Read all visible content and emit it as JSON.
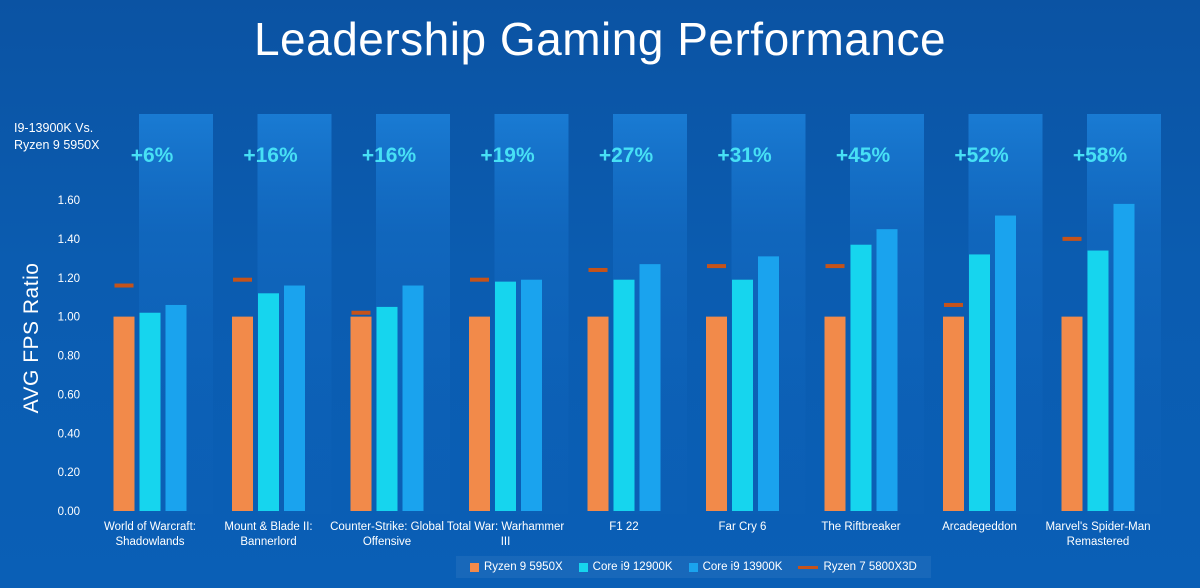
{
  "title": "Leadership Gaming Performance",
  "compare_note": "I9-13900K Vs. Ryzen 9 5950X",
  "chart_data": {
    "type": "bar",
    "title": "Leadership Gaming Performance",
    "ylabel": "AVG  FPS  Ratio",
    "xlabel": "",
    "ylim": [
      0,
      1.6
    ],
    "yticks": [
      "0.00",
      "0.20",
      "0.40",
      "0.60",
      "0.80",
      "1.00",
      "1.20",
      "1.40",
      "1.60"
    ],
    "grid": false,
    "legend_position": "bottom-center",
    "categories": [
      [
        "World of Warcraft:",
        "Shadowlands"
      ],
      [
        "Mount & Blade II:",
        "Bannerlord"
      ],
      [
        "Counter-Strike: Global",
        "Offensive"
      ],
      [
        "Total War: Warhammer",
        "III"
      ],
      [
        "F1 22"
      ],
      [
        "Far Cry 6"
      ],
      [
        "The Riftbreaker"
      ],
      [
        "Arcadegeddon"
      ],
      [
        "Marvel's Spider-Man",
        "Remastered"
      ]
    ],
    "improvements": [
      "+6%",
      "+16%",
      "+16%",
      "+19%",
      "+27%",
      "+31%",
      "+45%",
      "+52%",
      "+58%"
    ],
    "series": [
      {
        "name": "Ryzen 9 5950X",
        "kind": "bar",
        "color": "#f28a4a",
        "color_dark": "#c2521a",
        "values": [
          1.0,
          1.0,
          1.0,
          1.0,
          1.0,
          1.0,
          1.0,
          1.0,
          1.0
        ]
      },
      {
        "name": "Core i9 12900K",
        "kind": "bar",
        "color": "#16d5ee",
        "color_dark": "#0aa9cc",
        "values": [
          1.02,
          1.12,
          1.05,
          1.18,
          1.19,
          1.19,
          1.37,
          1.32,
          1.34
        ]
      },
      {
        "name": "Core i9 13900K",
        "kind": "bar",
        "color": "#1aa3ee",
        "color_dark": "#0f82d6",
        "values": [
          1.06,
          1.16,
          1.16,
          1.19,
          1.27,
          1.31,
          1.45,
          1.52,
          1.58
        ]
      },
      {
        "name": "Ryzen 7  5800X3D",
        "kind": "marker",
        "color": "#c5531a",
        "values": [
          1.16,
          1.19,
          1.02,
          1.19,
          1.24,
          1.26,
          1.26,
          1.06,
          1.4
        ]
      }
    ]
  }
}
